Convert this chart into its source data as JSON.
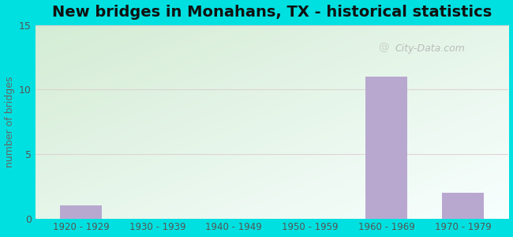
{
  "title": "New bridges in Monahans, TX - historical statistics",
  "categories": [
    "1920 - 1929",
    "1930 - 1939",
    "1940 - 1949",
    "1950 - 1959",
    "1960 - 1969",
    "1970 - 1979"
  ],
  "values": [
    1,
    0,
    0,
    0,
    11,
    2
  ],
  "bar_color": "#b8a8d0",
  "ylabel": "number of bridges",
  "ylim": [
    0,
    15
  ],
  "yticks": [
    0,
    5,
    10,
    15
  ],
  "background_outer": "#00e0e0",
  "plot_bg_topleft": "#d4ecd4",
  "plot_bg_bottomright": "#f8ffff",
  "title_fontsize": 14,
  "ylabel_fontsize": 9,
  "xlabel_fontsize": 8.5,
  "watermark": "City-Data.com",
  "grid_color": "#ddbbcc",
  "grid_color2": "#ccddcc"
}
